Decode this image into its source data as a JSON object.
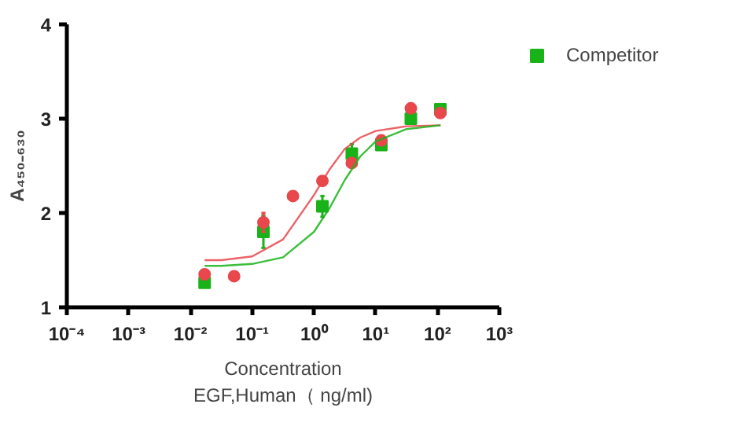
{
  "chart_data": {
    "type": "scatter",
    "xlabel": "Concentration\nEGF,Human（ ng/ml)",
    "ylabel": "A₄₅₀₋₆₃₀",
    "log": "x",
    "x": [
      0.017,
      0.051,
      0.152,
      0.457,
      1.37,
      4.1,
      12.3,
      37,
      111
    ],
    "series": [
      {
        "name": "Competitor",
        "color": "#19b319",
        "marker": "square",
        "values": [
          1.26,
          null,
          1.8,
          null,
          2.07,
          2.63,
          2.72,
          3.0,
          3.1
        ],
        "errors": [
          null,
          null,
          0.17,
          null,
          0.11,
          0.1,
          null,
          null,
          null
        ]
      },
      {
        "color": "#e8474c",
        "marker": "circle",
        "values": [
          1.35,
          1.33,
          1.9,
          2.18,
          2.34,
          2.53,
          2.77,
          3.11,
          3.06
        ],
        "errors": [
          null,
          null,
          0.1,
          null,
          null,
          null,
          null,
          null,
          null
        ]
      },
      {
        "type": "line",
        "color": "#e8474c",
        "x": [
          0.017,
          0.0316,
          0.1,
          0.316,
          1,
          1.78,
          3.16,
          5.62,
          10,
          31.6,
          112
        ],
        "values": [
          1.5,
          1.5,
          1.54,
          1.72,
          2.19,
          2.46,
          2.68,
          2.8,
          2.87,
          2.92,
          2.93
        ]
      },
      {
        "type": "line",
        "color": "#19b319",
        "x": [
          0.017,
          0.0316,
          0.1,
          0.316,
          1,
          1.78,
          3.16,
          5.62,
          10,
          31.6,
          112
        ],
        "values": [
          1.44,
          1.44,
          1.46,
          1.53,
          1.8,
          2.05,
          2.35,
          2.6,
          2.76,
          2.89,
          2.93
        ]
      }
    ],
    "xlim": [
      0.0001,
      1000
    ],
    "xticks": [
      {
        "value": 0.0001,
        "label": "10⁻⁴"
      },
      {
        "value": 0.001,
        "label": "10⁻³"
      },
      {
        "value": 0.01,
        "label": "10⁻²"
      },
      {
        "value": 0.1,
        "label": "10⁻¹"
      },
      {
        "value": 1,
        "label": "10⁰"
      },
      {
        "value": 10,
        "label": "10¹"
      },
      {
        "value": 100,
        "label": "10²"
      },
      {
        "value": 1000,
        "label": "10³"
      }
    ],
    "ylim": [
      1,
      4
    ],
    "yticks": [
      1,
      2,
      3,
      4
    ],
    "grid": false,
    "legend": "top right"
  }
}
